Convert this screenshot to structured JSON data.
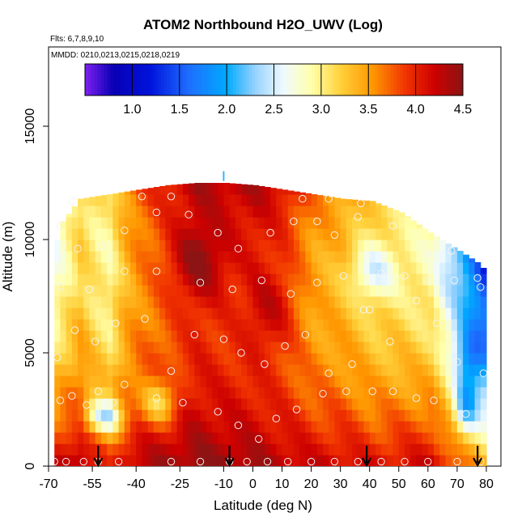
{
  "chart_data": {
    "type": "heatmap",
    "title": "ATOM2 Northbound H2O_UWV (Log)",
    "flights_label": "Flts: 6,7,8,9,10",
    "dates_label": "MMDD: 0210,0213,0215,0218,0219",
    "xlabel": "Latitude (deg N)",
    "ylabel": "Altitude (m)",
    "xlim": [
      -70,
      85
    ],
    "ylim": [
      0,
      18500
    ],
    "x_ticks": [
      -70,
      -55,
      -40,
      -25,
      -10,
      0,
      10,
      20,
      30,
      40,
      50,
      60,
      70,
      80
    ],
    "y_ticks": [
      0,
      5000,
      10000,
      15000
    ],
    "colorbar": {
      "min": 0.5,
      "max": 4.5,
      "ticks": [
        "1.0",
        "1.5",
        "2.0",
        "2.5",
        "3.0",
        "3.5",
        "4.0",
        "4.5"
      ],
      "tick_values": [
        1.0,
        1.5,
        2.0,
        2.5,
        3.0,
        3.5,
        4.0,
        4.5
      ]
    },
    "grid": {
      "lat_start": -68,
      "lat_step": 2,
      "alt_step": 500,
      "ceiling_altitude": [
        [
          -68,
          10000
        ],
        [
          -66,
          10800
        ],
        [
          -60,
          11800
        ],
        [
          -50,
          12000
        ],
        [
          -40,
          12200
        ],
        [
          -30,
          12400
        ],
        [
          -20,
          12500
        ],
        [
          -10,
          12500
        ],
        [
          0,
          12400
        ],
        [
          10,
          12200
        ],
        [
          20,
          12000
        ],
        [
          30,
          11800
        ],
        [
          40,
          11700
        ],
        [
          50,
          11200
        ],
        [
          60,
          10300
        ],
        [
          70,
          9500
        ],
        [
          76,
          9000
        ],
        [
          80,
          8500
        ]
      ],
      "surface_value_by_latitude": [
        [
          -68,
          4.2
        ],
        [
          -60,
          4.4
        ],
        [
          -55,
          4.1
        ],
        [
          -50,
          3.9
        ],
        [
          -45,
          4.2
        ],
        [
          -40,
          4.3
        ],
        [
          -30,
          4.4
        ],
        [
          -20,
          4.5
        ],
        [
          -10,
          4.45
        ],
        [
          0,
          4.4
        ],
        [
          10,
          4.3
        ],
        [
          20,
          4.2
        ],
        [
          30,
          4.2
        ],
        [
          40,
          4.1
        ],
        [
          50,
          4.15
        ],
        [
          60,
          4.2
        ],
        [
          70,
          3.8
        ],
        [
          80,
          3.3
        ]
      ],
      "decay_per_km_by_latitude": [
        [
          -68,
          0.2
        ],
        [
          -60,
          0.18
        ],
        [
          -50,
          0.16
        ],
        [
          -40,
          0.14
        ],
        [
          -30,
          0.13
        ],
        [
          -20,
          0.12
        ],
        [
          -10,
          0.12
        ],
        [
          0,
          0.115
        ],
        [
          10,
          0.12
        ],
        [
          20,
          0.14
        ],
        [
          30,
          0.15
        ],
        [
          40,
          0.16
        ],
        [
          50,
          0.17
        ],
        [
          60,
          0.19
        ],
        [
          70,
          0.22
        ],
        [
          80,
          0.26
        ]
      ]
    },
    "dry_patches": [
      {
        "lat": -52,
        "alt_km": 2.2,
        "lat_width": 7,
        "alt_width_km": 0.8,
        "delta": -1.1
      },
      {
        "lat": -33,
        "alt_km": 2.8,
        "lat_width": 6,
        "alt_width_km": 1.0,
        "delta": -0.8
      },
      {
        "lat": 40,
        "alt_km": 8.6,
        "lat_width": 8,
        "alt_width_km": 1.2,
        "delta": -0.6
      },
      {
        "lat": 72,
        "alt_km": 2.6,
        "lat_width": 4,
        "alt_width_km": 1.2,
        "delta": -0.9
      },
      {
        "lat": 73,
        "alt_km": 4.8,
        "lat_width": 5,
        "alt_width_km": 1.4,
        "delta": -0.7
      },
      {
        "lat": -20,
        "alt_km": 9.0,
        "lat_width": 10,
        "alt_width_km": 1.6,
        "delta": 0.5
      },
      {
        "lat": 5,
        "alt_km": 7.0,
        "lat_width": 8,
        "alt_width_km": 1.8,
        "delta": 0.4
      }
    ],
    "sample_points": [
      [
        -68,
        200
      ],
      [
        -64,
        200
      ],
      [
        -58,
        200
      ],
      [
        -53,
        200
      ],
      [
        -46,
        200
      ],
      [
        -28,
        200
      ],
      [
        -18,
        200
      ],
      [
        -8,
        200
      ],
      [
        -2,
        200
      ],
      [
        5,
        200
      ],
      [
        12,
        200
      ],
      [
        20,
        200
      ],
      [
        28,
        200
      ],
      [
        36,
        200
      ],
      [
        44,
        200
      ],
      [
        52,
        200
      ],
      [
        60,
        200
      ],
      [
        70,
        200
      ],
      [
        78,
        200
      ],
      [
        -66,
        2900
      ],
      [
        -62,
        3100
      ],
      [
        -57,
        2700
      ],
      [
        -53,
        3300
      ],
      [
        -48,
        2800
      ],
      [
        -44,
        3600
      ],
      [
        -33,
        3000
      ],
      [
        -24,
        2800
      ],
      [
        -12,
        2400
      ],
      [
        -5,
        1800
      ],
      [
        2,
        1200
      ],
      [
        8,
        2100
      ],
      [
        15,
        2500
      ],
      [
        24,
        3200
      ],
      [
        32,
        3300
      ],
      [
        41,
        3300
      ],
      [
        48,
        3300
      ],
      [
        56,
        3000
      ],
      [
        62,
        2900
      ],
      [
        68,
        3500
      ],
      [
        73,
        2300
      ],
      [
        -67,
        4800
      ],
      [
        -61,
        6000
      ],
      [
        -54,
        5500
      ],
      [
        -47,
        6300
      ],
      [
        -37,
        6500
      ],
      [
        -28,
        4200
      ],
      [
        -20,
        5800
      ],
      [
        -10,
        5600
      ],
      [
        -4,
        5000
      ],
      [
        4,
        4500
      ],
      [
        11,
        5300
      ],
      [
        18,
        5800
      ],
      [
        26,
        4100
      ],
      [
        34,
        4500
      ],
      [
        40,
        6900
      ],
      [
        47,
        5500
      ],
      [
        56,
        7300
      ],
      [
        63,
        6300
      ],
      [
        70,
        4600
      ],
      [
        79,
        4100
      ],
      [
        -66,
        7900
      ],
      [
        -56,
        7800
      ],
      [
        -44,
        8600
      ],
      [
        -33,
        8600
      ],
      [
        -18,
        8100
      ],
      [
        -7,
        7800
      ],
      [
        3,
        8200
      ],
      [
        13,
        7600
      ],
      [
        22,
        8100
      ],
      [
        31,
        8400
      ],
      [
        38,
        6900
      ],
      [
        44,
        8500
      ],
      [
        52,
        8400
      ],
      [
        60,
        8200
      ],
      [
        69,
        8200
      ],
      [
        78,
        7900
      ],
      [
        -66,
        10600
      ],
      [
        -60,
        9600
      ],
      [
        -52,
        9700
      ],
      [
        -44,
        10400
      ],
      [
        -33,
        11200
      ],
      [
        -22,
        11100
      ],
      [
        -12,
        10300
      ],
      [
        -5,
        9600
      ],
      [
        6,
        10300
      ],
      [
        14,
        10800
      ],
      [
        22,
        10800
      ],
      [
        28,
        10200
      ],
      [
        36,
        11000
      ],
      [
        48,
        10600
      ],
      [
        60,
        9400
      ],
      [
        68,
        9500
      ],
      [
        77,
        8300
      ],
      [
        -62,
        11700
      ],
      [
        -38,
        11900
      ],
      [
        -28,
        11900
      ],
      [
        17,
        11800
      ],
      [
        26,
        11800
      ],
      [
        37,
        11600
      ]
    ],
    "flight_markers_latitude": [
      -53,
      -8,
      39,
      77
    ],
    "outlier_marker": {
      "lat": -10,
      "alt": 12800,
      "value": 2.1
    }
  }
}
